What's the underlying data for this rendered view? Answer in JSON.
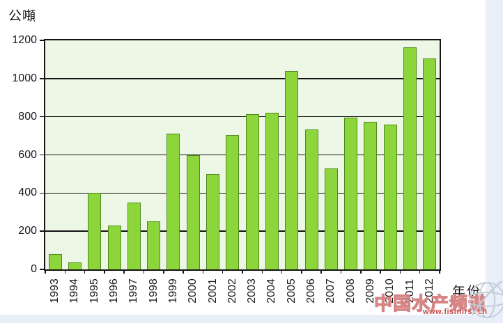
{
  "watermark": {
    "title": "中国水产频道",
    "url": "www.fishfirst.cn"
  },
  "chart_data": {
    "type": "bar",
    "title": "",
    "xlabel": "年份",
    "ylabel": "公噸",
    "categories": [
      "1993",
      "1994",
      "1995",
      "1996",
      "1997",
      "1998",
      "1999",
      "2000",
      "2001",
      "2002",
      "2003",
      "2004",
      "2005",
      "2006",
      "2007",
      "2008",
      "2009",
      "2010",
      "2011",
      "2012"
    ],
    "values": [
      80,
      35,
      400,
      230,
      350,
      250,
      710,
      600,
      500,
      705,
      815,
      820,
      1040,
      735,
      530,
      795,
      775,
      760,
      1165,
      1105
    ],
    "ylim": [
      0,
      1200
    ],
    "yticks": [
      0,
      200,
      400,
      600,
      800,
      1000,
      1200
    ],
    "grid": true,
    "legend": "none",
    "bar_color": "#8cd63c",
    "bar_border_color": "#4f8a1d",
    "plot_bg_color": "#edf7e6",
    "accent_band_color": "#e9eff8"
  }
}
